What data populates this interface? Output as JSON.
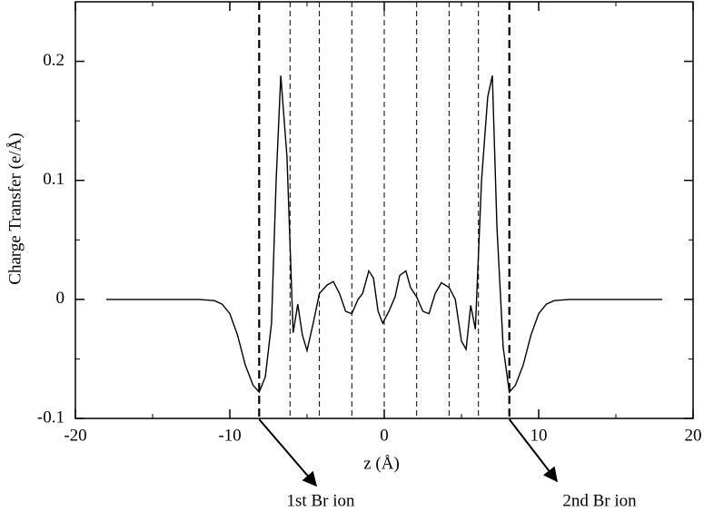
{
  "chart_data": {
    "type": "line",
    "xlabel": "z (Å)",
    "ylabel": "Charge Transfer (e/Å)",
    "xlim": [
      -20,
      20
    ],
    "ylim": [
      -0.1,
      0.25
    ],
    "xticks": [
      -20,
      -10,
      0,
      10,
      20
    ],
    "yticks": [
      -0.1,
      0,
      0.1,
      0.2
    ],
    "xminorticks": [
      -15,
      -5,
      5,
      15
    ],
    "yminorticks": [
      -0.05,
      0.05,
      0.15
    ],
    "grid": false,
    "color": "#000000",
    "x": [
      -18,
      -16,
      -14,
      -12,
      -11,
      -10.5,
      -10,
      -9.5,
      -9,
      -8.5,
      -8.1,
      -7.7,
      -7.3,
      -7.0,
      -6.7,
      -6.3,
      -5.9,
      -5.6,
      -5.3,
      -5.0,
      -4.6,
      -4.2,
      -3.7,
      -3.3,
      -2.9,
      -2.5,
      -2.1,
      -1.7,
      -1.4,
      -1.0,
      -0.7,
      -0.4,
      -0.1,
      0.3,
      0.7,
      1.0,
      1.4,
      1.7,
      2.1,
      2.5,
      2.9,
      3.3,
      3.7,
      4.2,
      4.6,
      5.0,
      5.3,
      5.6,
      5.9,
      6.3,
      6.7,
      7.0,
      7.3,
      7.7,
      8.1,
      8.5,
      9,
      9.5,
      10,
      10.5,
      11,
      12,
      14,
      16,
      18
    ],
    "values": [
      0,
      0,
      0,
      0,
      -0.001,
      -0.004,
      -0.012,
      -0.03,
      -0.055,
      -0.072,
      -0.078,
      -0.065,
      -0.02,
      0.1,
      0.188,
      0.12,
      -0.028,
      -0.004,
      -0.03,
      -0.043,
      -0.02,
      0.005,
      0.012,
      0.015,
      0.005,
      -0.01,
      -0.012,
      0.0,
      0.005,
      0.024,
      0.018,
      -0.01,
      -0.02,
      -0.01,
      0.002,
      0.02,
      0.024,
      0.01,
      0.002,
      -0.01,
      -0.012,
      0.005,
      0.014,
      0.01,
      0.0,
      -0.035,
      -0.042,
      -0.005,
      -0.025,
      0.1,
      0.17,
      0.188,
      0.06,
      -0.04,
      -0.078,
      -0.072,
      -0.055,
      -0.03,
      -0.012,
      -0.004,
      -0.001,
      0,
      0,
      0,
      0
    ],
    "ion_lines": [
      -8.1,
      8.1
    ],
    "layer_lines": [
      -6.1,
      -4.2,
      -2.1,
      0,
      2.1,
      4.2,
      6.1
    ],
    "annotations": [
      {
        "text": "1st Br ion",
        "x": -8.1
      },
      {
        "text": "2nd Br ion",
        "x": 8.1
      }
    ]
  }
}
